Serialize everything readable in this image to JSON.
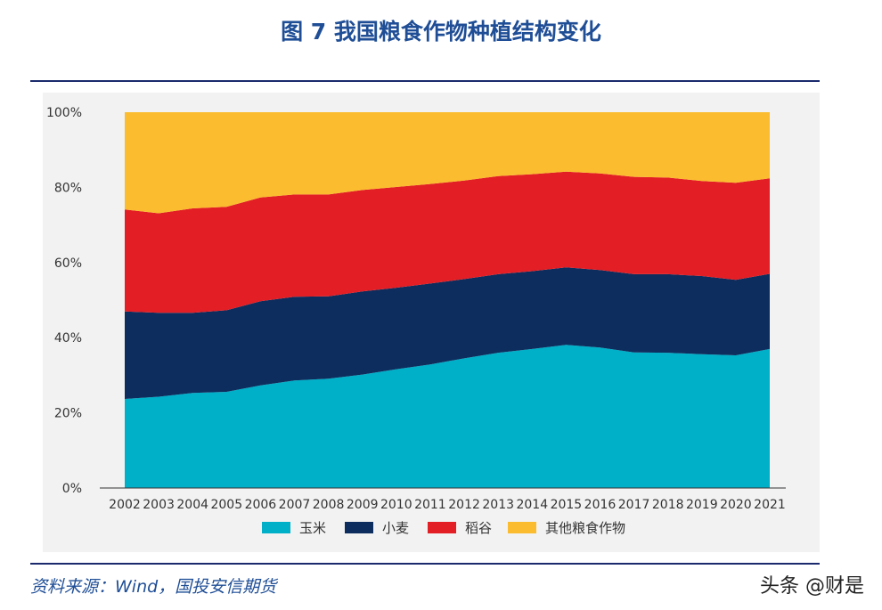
{
  "title": "图 7 我国粮食作物种植结构变化",
  "source": "资料来源：Wind，国投安信期货",
  "watermark": "头条 @财是",
  "chart_data": {
    "type": "area",
    "stacked": true,
    "normalized": true,
    "x": [
      "2002",
      "2003",
      "2004",
      "2005",
      "2006",
      "2007",
      "2008",
      "2009",
      "2010",
      "2011",
      "2012",
      "2013",
      "2014",
      "2015",
      "2016",
      "2017",
      "2018",
      "2019",
      "2020",
      "2021"
    ],
    "y_ticks": [
      "0%",
      "20%",
      "40%",
      "60%",
      "80%",
      "100%"
    ],
    "ylim": [
      0,
      100
    ],
    "legend_position": "bottom",
    "series": [
      {
        "name": "玉米",
        "color": "#00afc8",
        "values": [
          23.7,
          24.3,
          25.3,
          25.6,
          27.3,
          28.6,
          29.1,
          30.2,
          31.6,
          32.9,
          34.5,
          36.0,
          37.0,
          38.1,
          37.4,
          36.1,
          36.0,
          35.6,
          35.3,
          37.0
        ]
      },
      {
        "name": "小麦",
        "color": "#0c2d5e",
        "values": [
          23.3,
          22.3,
          21.3,
          21.7,
          22.4,
          22.3,
          21.9,
          22.1,
          21.7,
          21.5,
          21.1,
          20.9,
          20.7,
          20.6,
          20.6,
          20.8,
          20.9,
          20.8,
          20.1,
          20.0
        ]
      },
      {
        "name": "稻谷",
        "color": "#e31e24",
        "values": [
          27.1,
          26.5,
          27.8,
          27.5,
          27.6,
          27.2,
          27.1,
          27.0,
          26.8,
          26.5,
          26.2,
          26.1,
          25.8,
          25.5,
          25.7,
          25.9,
          25.7,
          25.3,
          25.8,
          25.4
        ]
      },
      {
        "name": "其他粮食作物",
        "color": "#fbbd2f",
        "values": [
          25.9,
          26.9,
          25.6,
          25.2,
          22.7,
          21.9,
          21.9,
          20.7,
          19.9,
          19.1,
          18.2,
          17.0,
          16.5,
          15.8,
          16.3,
          17.2,
          17.4,
          18.3,
          18.8,
          17.6
        ]
      }
    ]
  }
}
